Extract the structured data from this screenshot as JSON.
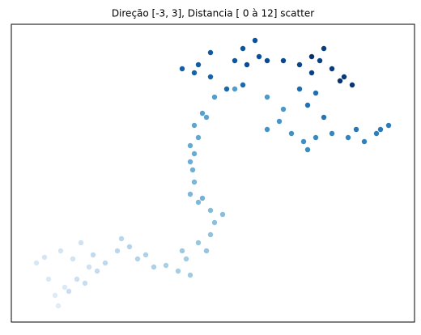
{
  "chart_data": {
    "type": "scatter",
    "title": "Direção [-3, 3], Distancia [ 0 à 12] scatter",
    "colormap": "Blues",
    "xlim": [
      14,
      512
    ],
    "ylim": [
      0,
      368
    ],
    "xticks": [],
    "yticks": [],
    "x": [
      72,
      68,
      80,
      60,
      45,
      55,
      75,
      90,
      100,
      110,
      95,
      85,
      105,
      120,
      115,
      130,
      145,
      150,
      160,
      170,
      180,
      190,
      205,
      220,
      230,
      235,
      225,
      245,
      255,
      260,
      265,
      275,
      260,
      245,
      235,
      240,
      250,
      238,
      235,
      240,
      235,
      245,
      240,
      255,
      250,
      265,
      290,
      330,
      350,
      345,
      330,
      360,
      375,
      380,
      390,
      410,
      430,
      450,
      465,
      480,
      470,
      440,
      400,
      380,
      390,
      370,
      300,
      280,
      260,
      240,
      225,
      245,
      260,
      290,
      300,
      315,
      320,
      305,
      330,
      350,
      370,
      385,
      395,
      400,
      410,
      425,
      435,
      420,
      385
    ],
    "y": [
      20,
      33,
      43,
      53,
      73,
      80,
      88,
      78,
      98,
      68,
      53,
      38,
      48,
      63,
      83,
      73,
      88,
      103,
      93,
      78,
      83,
      68,
      70,
      63,
      78,
      58,
      88,
      98,
      88,
      108,
      123,
      133,
      138,
      148,
      158,
      173,
      153,
      188,
      198,
      208,
      218,
      228,
      243,
      253,
      258,
      278,
      288,
      278,
      263,
      248,
      238,
      233,
      223,
      213,
      228,
      233,
      228,
      223,
      233,
      243,
      238,
      238,
      253,
      268,
      283,
      288,
      293,
      288,
      303,
      308,
      313,
      318,
      333,
      323,
      338,
      348,
      328,
      318,
      323,
      323,
      318,
      308,
      323,
      338,
      313,
      303,
      293,
      298,
      328
    ]
  }
}
